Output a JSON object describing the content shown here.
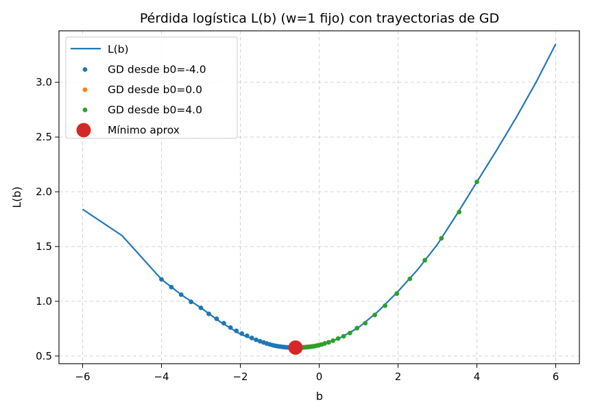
{
  "chart_data": {
    "type": "line",
    "title": "Pérdida logística L(b) (w=1 fijo) con trayectorias de GD",
    "xlabel": "b",
    "ylabel": "L(b)",
    "xlim": [
      -6.6,
      6.6
    ],
    "ylim": [
      0.43,
      3.47
    ],
    "xticks": [
      -6,
      -4,
      -2,
      0,
      2,
      4,
      6
    ],
    "xtick_labels": [
      "−6",
      "−4",
      "−2",
      "0",
      "2",
      "4",
      "6"
    ],
    "yticks": [
      0.5,
      1.0,
      1.5,
      2.0,
      2.5,
      3.0
    ],
    "ytick_labels": [
      "0.5",
      "1.0",
      "1.5",
      "2.0",
      "2.5",
      "3.0"
    ],
    "grid": true,
    "legend_position": "upper-left",
    "curve": {
      "name": "L(b)",
      "color": "#1f77b4",
      "x": [
        -6.0,
        -5.5,
        -5.0,
        -4.5,
        -4.0,
        -3.5,
        -3.0,
        -2.5,
        -2.0,
        -1.5,
        -1.0,
        -0.6,
        -0.25,
        0.0,
        0.5,
        1.0,
        1.5,
        2.0,
        2.5,
        3.0,
        3.5,
        4.0,
        4.5,
        5.0,
        5.5,
        6.0
      ],
      "y": [
        1.84,
        1.72,
        1.6,
        1.4,
        1.2,
        1.06,
        0.94,
        0.81,
        0.7,
        0.63,
        0.59,
        0.577,
        0.585,
        0.6,
        0.66,
        0.76,
        0.91,
        1.09,
        1.29,
        1.52,
        1.8,
        2.09,
        2.38,
        2.68,
        3.0,
        3.35
      ]
    },
    "series": [
      {
        "name": "GD desde b0=-4.0",
        "color": "#1f77b4",
        "x": [
          -4.0,
          -3.75,
          -3.5,
          -3.25,
          -3.0,
          -2.8,
          -2.6,
          -2.42,
          -2.25,
          -2.1,
          -1.96,
          -1.83,
          -1.71,
          -1.6,
          -1.5,
          -1.41,
          -1.33,
          -1.25,
          -1.18,
          -1.12,
          -1.06,
          -1.0,
          -0.95,
          -0.9,
          -0.85,
          -0.81,
          -0.77,
          -0.73,
          -0.7,
          -0.67
        ],
        "y": [
          1.2,
          1.13,
          1.06,
          0.995,
          0.94,
          0.885,
          0.84,
          0.8,
          0.76,
          0.73,
          0.705,
          0.685,
          0.665,
          0.648,
          0.635,
          0.624,
          0.614,
          0.606,
          0.599,
          0.594,
          0.59,
          0.587,
          0.584,
          0.582,
          0.58,
          0.579,
          0.578,
          0.5775,
          0.5772,
          0.577
        ]
      },
      {
        "name": "GD desde b0=0.0",
        "color": "#ff7f0e",
        "x": [
          0.0,
          -0.07,
          -0.13,
          -0.19,
          -0.24,
          -0.29,
          -0.33,
          -0.37,
          -0.4,
          -0.43,
          -0.46,
          -0.48,
          -0.5,
          -0.52,
          -0.54
        ],
        "y": [
          0.6,
          0.595,
          0.591,
          0.588,
          0.586,
          0.584,
          0.582,
          0.581,
          0.58,
          0.579,
          0.5785,
          0.578,
          0.5777,
          0.5774,
          0.5772
        ]
      },
      {
        "name": "GD desde b0=4.0",
        "color": "#2ca02c",
        "x": [
          4.0,
          3.55,
          3.1,
          2.68,
          2.3,
          1.97,
          1.67,
          1.41,
          1.17,
          0.96,
          0.78,
          0.62,
          0.48,
          0.35,
          0.24,
          0.14,
          0.06,
          -0.02,
          -0.09,
          -0.15,
          -0.21,
          -0.26,
          -0.31,
          -0.35,
          -0.39,
          -0.42,
          -0.45,
          -0.48,
          -0.5,
          -0.52
        ],
        "y": [
          2.09,
          1.815,
          1.575,
          1.375,
          1.205,
          1.07,
          0.96,
          0.875,
          0.8,
          0.755,
          0.71,
          0.68,
          0.66,
          0.64,
          0.625,
          0.615,
          0.605,
          0.598,
          0.592,
          0.588,
          0.585,
          0.583,
          0.581,
          0.58,
          0.579,
          0.5785,
          0.578,
          0.5776,
          0.5773,
          0.5771
        ]
      }
    ],
    "minimum": {
      "name": "Mínimo aprox",
      "color": "#d62728",
      "x": -0.6,
      "y": 0.577
    },
    "legend": [
      {
        "label": "L(b)",
        "kind": "line",
        "color": "#1f77b4"
      },
      {
        "label": "GD desde b0=-4.0",
        "kind": "dot",
        "color": "#1f77b4"
      },
      {
        "label": "GD desde b0=0.0",
        "kind": "dot",
        "color": "#ff7f0e"
      },
      {
        "label": "GD desde b0=4.0",
        "kind": "dot",
        "color": "#2ca02c"
      },
      {
        "label": "Mínimo aprox",
        "kind": "bigdot",
        "color": "#d62728"
      }
    ]
  }
}
